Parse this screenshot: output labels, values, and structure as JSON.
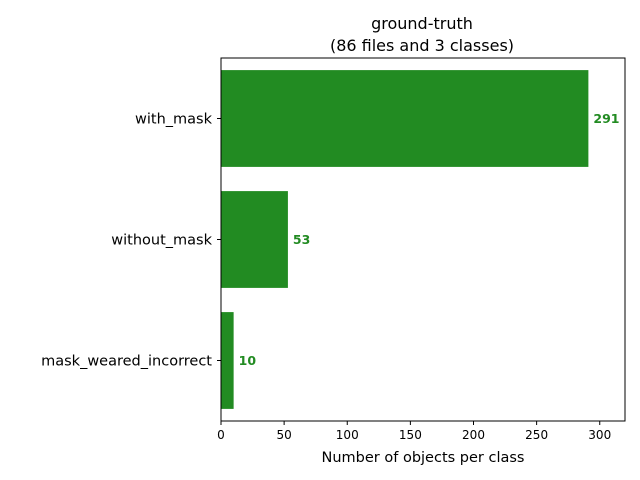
{
  "chart_data": {
    "type": "bar",
    "orientation": "horizontal",
    "title": "ground-truth",
    "subtitle": "(86 files and 3 classes)",
    "xlabel": "Number of objects per class",
    "ylabel": "",
    "categories": [
      "with_mask",
      "without_mask",
      "mask_weared_incorrect"
    ],
    "values": [
      291,
      53,
      10
    ],
    "value_labels": [
      "291",
      "53",
      "10"
    ],
    "xlim": [
      0,
      320
    ],
    "xticks": [
      0,
      50,
      100,
      150,
      200,
      250,
      300
    ],
    "xtick_labels": [
      "0",
      "50",
      "100",
      "150",
      "200",
      "250",
      "300"
    ],
    "bar_color": "#228b22",
    "grid": false,
    "legend": "none"
  }
}
